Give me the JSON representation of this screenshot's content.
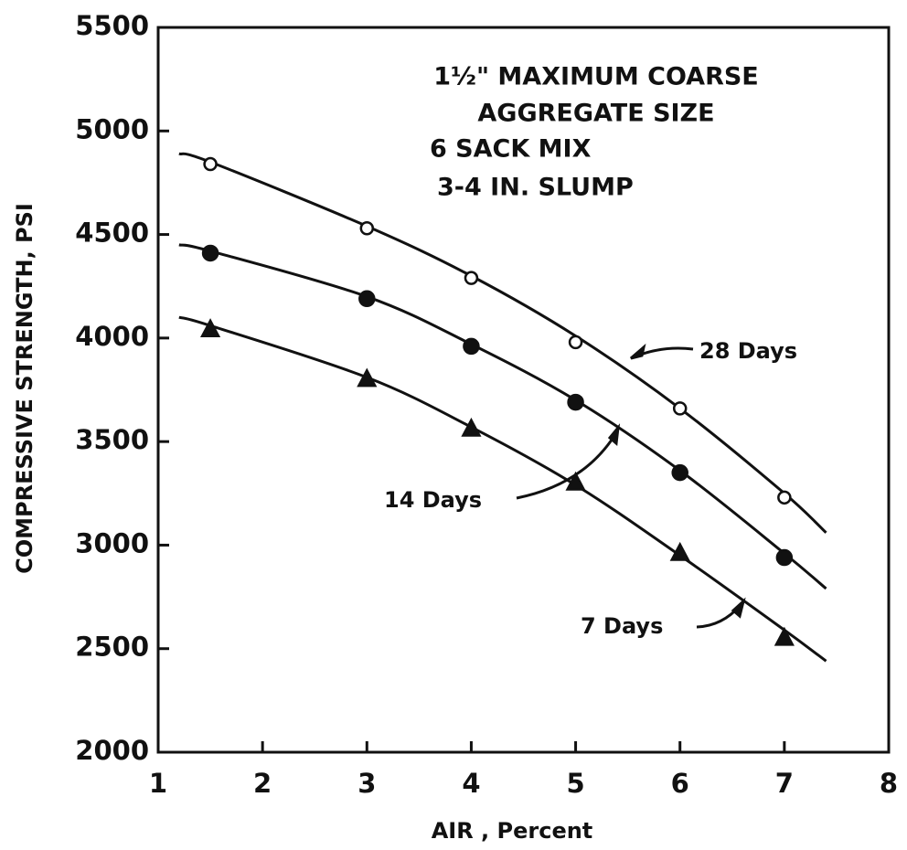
{
  "chart_data": {
    "type": "scatter",
    "xlabel": "AIR , Percent",
    "ylabel": "COMPRESSIVE STRENGTH, PSI",
    "annotations": [
      "1½\" MAXIMUM COARSE",
      "AGGREGATE SIZE",
      "6 SACK MIX",
      "3-4 IN. SLUMP"
    ],
    "xlim": [
      1,
      8
    ],
    "xticks": [
      1,
      2,
      3,
      4,
      5,
      6,
      7,
      8
    ],
    "ylim": [
      2000,
      5500
    ],
    "yticks": [
      2000,
      2500,
      3000,
      3500,
      4000,
      4500,
      5000,
      5500
    ],
    "color": "#111111",
    "series": [
      {
        "name": "28 Days",
        "marker": "open-circle",
        "x": [
          1.5,
          3,
          4,
          5,
          6,
          7
        ],
        "values": [
          4840,
          4530,
          4290,
          3980,
          3660,
          3230
        ],
        "curve_x": [
          1.2,
          1.5,
          3,
          4,
          5,
          6,
          7,
          7.4
        ],
        "curve_values": [
          4890,
          4850,
          4540,
          4300,
          4010,
          3660,
          3250,
          3060
        ]
      },
      {
        "name": "14 Days",
        "marker": "filled-circle",
        "x": [
          1.5,
          3,
          4,
          5,
          6,
          7
        ],
        "values": [
          4410,
          4190,
          3960,
          3690,
          3350,
          2940
        ],
        "curve_x": [
          1.2,
          1.5,
          3,
          4,
          5,
          6,
          7,
          7.4
        ],
        "curve_values": [
          4450,
          4420,
          4200,
          3970,
          3700,
          3360,
          2960,
          2790
        ]
      },
      {
        "name": "7 Days",
        "marker": "triangle",
        "x": [
          1.5,
          3,
          4,
          5,
          6,
          7
        ],
        "values": [
          4040,
          3800,
          3560,
          3300,
          2960,
          2550
        ],
        "curve_x": [
          1.2,
          1.5,
          3,
          4,
          5,
          6,
          7,
          7.4
        ],
        "curve_values": [
          4100,
          4060,
          3810,
          3570,
          3290,
          2950,
          2590,
          2440
        ]
      }
    ]
  }
}
